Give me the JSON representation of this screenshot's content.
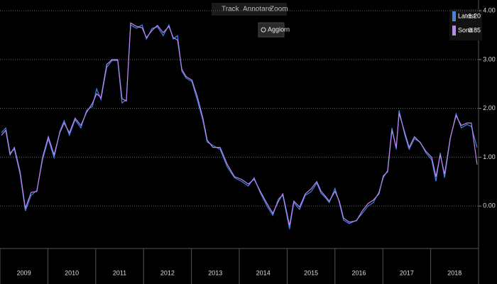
{
  "toolbar": {
    "items": [
      "Track",
      "Annotare",
      "Zoom"
    ],
    "button": "Aggiorn"
  },
  "chart_data": {
    "type": "line",
    "x": [
      2009.03,
      2009.12,
      2009.21,
      2009.3,
      2009.42,
      2009.53,
      2009.65,
      2009.77,
      2009.89,
      2010.01,
      2010.13,
      2010.25,
      2010.34,
      2010.45,
      2010.57,
      2010.69,
      2010.81,
      2010.93,
      2011.02,
      2011.11,
      2011.23,
      2011.34,
      2011.46,
      2011.55,
      2011.64,
      2011.73,
      2011.85,
      2011.97,
      2012.06,
      2012.18,
      2012.29,
      2012.41,
      2012.53,
      2012.62,
      2012.71,
      2012.8,
      2012.89,
      2013.01,
      2013.12,
      2013.24,
      2013.33,
      2013.45,
      2013.6,
      2013.75,
      2013.9,
      2014.04,
      2014.19,
      2014.31,
      2014.43,
      2014.58,
      2014.7,
      2014.82,
      2014.91,
      2015.05,
      2015.14,
      2015.26,
      2015.38,
      2015.5,
      2015.62,
      2015.71,
      2015.8,
      2015.88,
      2016.0,
      2016.09,
      2016.18,
      2016.3,
      2016.45,
      2016.57,
      2016.69,
      2016.8,
      2016.92,
      2017.01,
      2017.1,
      2017.19,
      2017.28,
      2017.34,
      2017.46,
      2017.55,
      2017.66,
      2017.78,
      2017.9,
      2018.02,
      2018.11,
      2018.2,
      2018.29,
      2018.41,
      2018.53,
      2018.64,
      2018.76,
      2018.85,
      2018.97
    ],
    "series": [
      {
        "name": "Latest",
        "color": "#3d86e6",
        "last_label": "1.20",
        "values": [
          1.5,
          1.6,
          1.09,
          1.16,
          0.65,
          -0.1,
          0.22,
          0.32,
          0.95,
          1.37,
          0.99,
          1.53,
          1.75,
          1.45,
          1.77,
          1.6,
          1.96,
          2.04,
          2.4,
          2.18,
          2.84,
          2.98,
          2.98,
          2.11,
          2.18,
          3.71,
          3.64,
          3.71,
          3.42,
          3.64,
          3.67,
          3.49,
          3.71,
          3.42,
          3.49,
          2.76,
          2.62,
          2.55,
          2.18,
          1.75,
          1.31,
          1.24,
          1.16,
          0.8,
          0.58,
          0.51,
          0.41,
          0.58,
          0.29,
          0.0,
          -0.19,
          0.15,
          0.22,
          -0.47,
          0.07,
          -0.07,
          0.22,
          0.29,
          0.47,
          0.26,
          0.17,
          0.07,
          0.36,
          0.07,
          -0.29,
          -0.36,
          -0.29,
          -0.15,
          0.0,
          0.07,
          0.29,
          0.58,
          0.73,
          1.6,
          1.16,
          1.96,
          1.45,
          1.16,
          1.38,
          1.31,
          1.09,
          0.95,
          0.51,
          1.09,
          0.58,
          1.38,
          1.89,
          1.6,
          1.67,
          1.63,
          1.2
        ]
      },
      {
        "name": "Sond",
        "color": "#c184f0",
        "last_label": "0.85",
        "values": [
          1.45,
          1.55,
          1.05,
          1.2,
          0.7,
          -0.05,
          0.28,
          0.3,
          1.0,
          1.42,
          1.05,
          1.5,
          1.7,
          1.5,
          1.8,
          1.65,
          1.92,
          2.1,
          2.3,
          2.22,
          2.9,
          3.0,
          3.0,
          2.2,
          2.15,
          3.75,
          3.68,
          3.65,
          3.45,
          3.6,
          3.7,
          3.55,
          3.68,
          3.45,
          3.4,
          2.8,
          2.65,
          2.58,
          2.25,
          1.8,
          1.35,
          1.2,
          1.2,
          0.85,
          0.6,
          0.55,
          0.45,
          0.55,
          0.32,
          0.05,
          -0.15,
          0.1,
          0.25,
          -0.4,
          0.1,
          -0.02,
          0.25,
          0.35,
          0.5,
          0.3,
          0.2,
          0.1,
          0.3,
          0.1,
          -0.25,
          -0.33,
          -0.3,
          -0.1,
          0.05,
          0.12,
          0.25,
          0.62,
          0.7,
          1.55,
          1.2,
          1.9,
          1.5,
          1.2,
          1.42,
          1.3,
          1.12,
          1.0,
          0.6,
          1.05,
          0.65,
          1.4,
          1.85,
          1.65,
          1.7,
          1.7,
          0.85
        ]
      }
    ],
    "xlim": [
      2009,
      2019
    ],
    "xticks": [
      {
        "value": 2009,
        "label": "2009"
      },
      {
        "value": 2010,
        "label": "2010"
      },
      {
        "value": 2011,
        "label": "2011"
      },
      {
        "value": 2012,
        "label": "2012"
      },
      {
        "value": 2013,
        "label": "2013"
      },
      {
        "value": 2014,
        "label": "2014"
      },
      {
        "value": 2015,
        "label": "2015"
      },
      {
        "value": 2016,
        "label": "2016"
      },
      {
        "value": 2017,
        "label": "2017"
      },
      {
        "value": 2018,
        "label": "2018"
      }
    ],
    "ylim": [
      -0.87,
      4.22
    ],
    "yticks": [
      {
        "value": 0,
        "label": "0.00"
      },
      {
        "value": 1,
        "label": "1.00"
      },
      {
        "value": 2,
        "label": "2.00"
      },
      {
        "value": 3,
        "label": "3.00"
      },
      {
        "value": 4,
        "label": "4.00"
      }
    ],
    "grid": true,
    "legend": "top-right"
  }
}
